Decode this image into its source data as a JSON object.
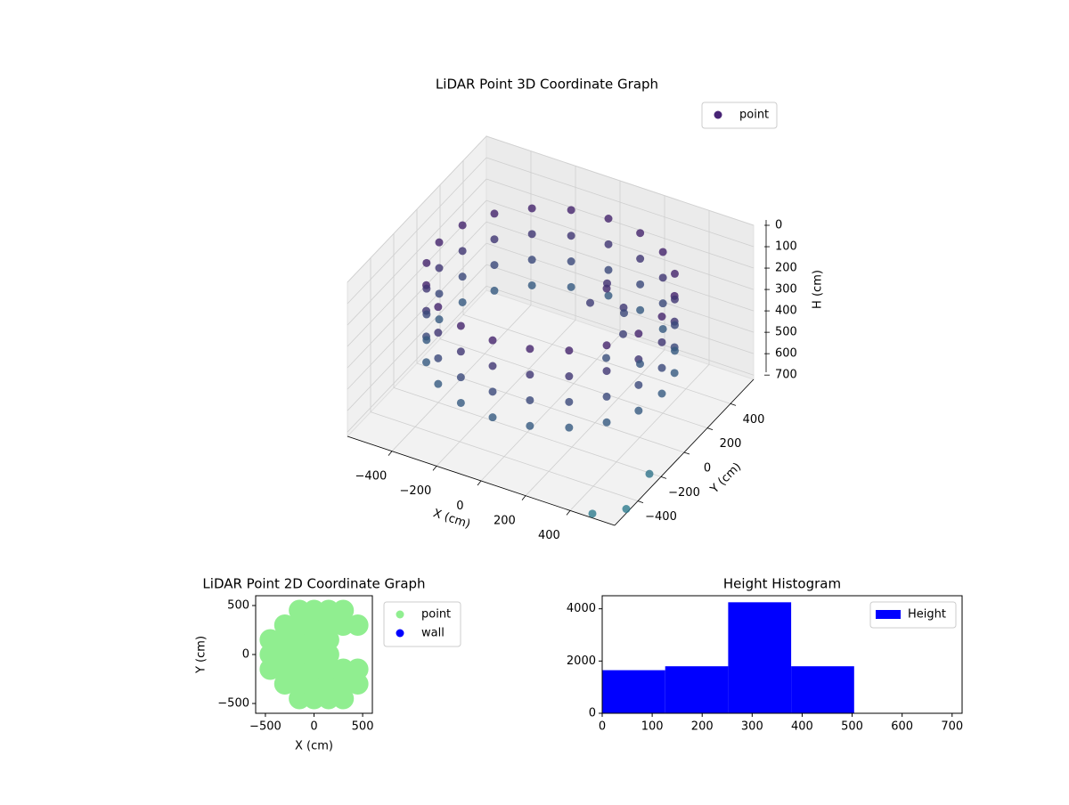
{
  "chart_data": [
    {
      "type": "scatter3d",
      "title": "LiDAR Point 3D Coordinate Graph",
      "xlabel": "X (cm)",
      "ylabel": "Y (cm)",
      "zlabel": "H (cm)",
      "xlim": [
        -600,
        600
      ],
      "ylim": [
        -600,
        600
      ],
      "zlim": [
        0,
        720
      ],
      "zinvert": true,
      "xticks": [
        {
          "value": -400,
          "label": "−400"
        },
        {
          "value": -200,
          "label": "−200"
        },
        0,
        200,
        400
      ],
      "yticks": [
        {
          "value": -400,
          "label": "−400"
        },
        {
          "value": -200,
          "label": "−200"
        },
        0,
        200,
        400
      ],
      "zticks": [
        0,
        100,
        200,
        300,
        400,
        500,
        600,
        700
      ],
      "cmap": [
        "#471164",
        "#2c7d8e"
      ],
      "legend": "upper right",
      "grid": true,
      "series": [
        {
          "name": "point",
          "color": "#482475",
          "x": [
            500,
            476,
            405,
            294,
            155,
            0,
            -155,
            -294,
            -405,
            -476,
            -500,
            -476,
            -405,
            -294,
            -155,
            0,
            155,
            294,
            405,
            476,
            500,
            476,
            405,
            294,
            155,
            0,
            -155,
            -294,
            -405,
            -476,
            -500,
            -476,
            -405,
            -294,
            -155,
            0,
            155,
            294,
            405,
            476,
            500,
            476,
            405,
            294,
            155,
            0,
            -155,
            -294,
            -405,
            -476,
            -500,
            -476,
            -405,
            -294,
            -155,
            0,
            155,
            294,
            405,
            476,
            500,
            476,
            405,
            294,
            155,
            0,
            -155,
            -294,
            -405,
            -476,
            -500,
            -476,
            -405,
            -294,
            -155,
            0,
            155,
            294,
            405,
            476,
            200,
            250,
            150,
            300,
            200,
            100,
            250,
            350,
            600,
            600,
            500
          ],
          "y": [
            0,
            155,
            294,
            405,
            476,
            500,
            476,
            405,
            294,
            155,
            0,
            -155,
            -294,
            -405,
            -476,
            -500,
            -476,
            -405,
            -294,
            -155,
            0,
            155,
            294,
            405,
            476,
            500,
            476,
            405,
            294,
            155,
            0,
            -155,
            -294,
            -405,
            -476,
            -500,
            -476,
            -405,
            -294,
            -155,
            0,
            155,
            294,
            405,
            476,
            500,
            476,
            405,
            294,
            155,
            0,
            -155,
            -294,
            -405,
            -476,
            -500,
            -476,
            -405,
            -294,
            -155,
            0,
            155,
            294,
            405,
            476,
            500,
            476,
            405,
            294,
            155,
            0,
            -155,
            -294,
            -405,
            -476,
            -500,
            -476,
            -405,
            -294,
            -155,
            100,
            150,
            200,
            50,
            250,
            150,
            0,
            100,
            -300,
            -500,
            -600
          ],
          "z": [
            120,
            120,
            120,
            120,
            120,
            120,
            120,
            120,
            120,
            120,
            120,
            120,
            120,
            120,
            120,
            120,
            120,
            120,
            120,
            120,
            240,
            240,
            240,
            240,
            240,
            240,
            240,
            240,
            240,
            240,
            240,
            240,
            240,
            240,
            240,
            240,
            240,
            240,
            240,
            240,
            360,
            360,
            360,
            360,
            360,
            360,
            360,
            360,
            360,
            360,
            360,
            360,
            360,
            360,
            360,
            360,
            360,
            360,
            360,
            360,
            480,
            480,
            480,
            480,
            480,
            480,
            480,
            480,
            480,
            480,
            480,
            480,
            480,
            480,
            480,
            480,
            480,
            480,
            480,
            480,
            150,
            250,
            200,
            300,
            350,
            280,
            400,
            450,
            650,
            700,
            700
          ]
        }
      ]
    },
    {
      "type": "scatter",
      "title": "LiDAR Point 2D Coordinate Graph",
      "xlabel": "X (cm)",
      "ylabel": "Y (cm)",
      "xlim": [
        -600,
        600
      ],
      "ylim": [
        -600,
        600
      ],
      "xticks": [
        {
          "value": -500,
          "label": "−500"
        },
        0,
        500
      ],
      "yticks": [
        {
          "value": -500,
          "label": "−500"
        },
        0,
        500
      ],
      "legend": "upper left outside",
      "series": [
        {
          "name": "point",
          "color": "#90ee90",
          "x": [
            -450,
            -450,
            -450,
            -300,
            -300,
            -300,
            -300,
            -300,
            -150,
            -150,
            -150,
            -150,
            -150,
            -150,
            -150,
            0,
            0,
            0,
            0,
            0,
            0,
            0,
            150,
            150,
            150,
            150,
            150,
            150,
            150,
            300,
            300,
            300,
            300,
            300,
            450,
            450,
            450
          ],
          "y": [
            -150,
            0,
            150,
            -300,
            -150,
            0,
            150,
            300,
            -450,
            -300,
            -150,
            0,
            150,
            300,
            450,
            -450,
            -300,
            -150,
            0,
            150,
            300,
            450,
            -450,
            -300,
            -150,
            0,
            150,
            300,
            450,
            -450,
            -300,
            -150,
            300,
            450,
            -300,
            -150,
            300
          ]
        },
        {
          "name": "wall",
          "color": "#0000ff",
          "x": [],
          "y": []
        }
      ]
    },
    {
      "type": "histogram",
      "title": "Height Histogram",
      "xlim": [
        0,
        720
      ],
      "ylim": [
        0,
        4500
      ],
      "xticks": [
        0,
        100,
        200,
        300,
        400,
        500,
        600,
        700
      ],
      "yticks": [
        0,
        2000,
        4000
      ],
      "legend": "upper right",
      "series": [
        {
          "name": "Height",
          "color": "#0000ff",
          "bins": [
            0,
            126,
            252,
            378,
            504,
            630
          ],
          "counts": [
            1650,
            1800,
            4250,
            1800,
            0
          ]
        }
      ]
    }
  ]
}
